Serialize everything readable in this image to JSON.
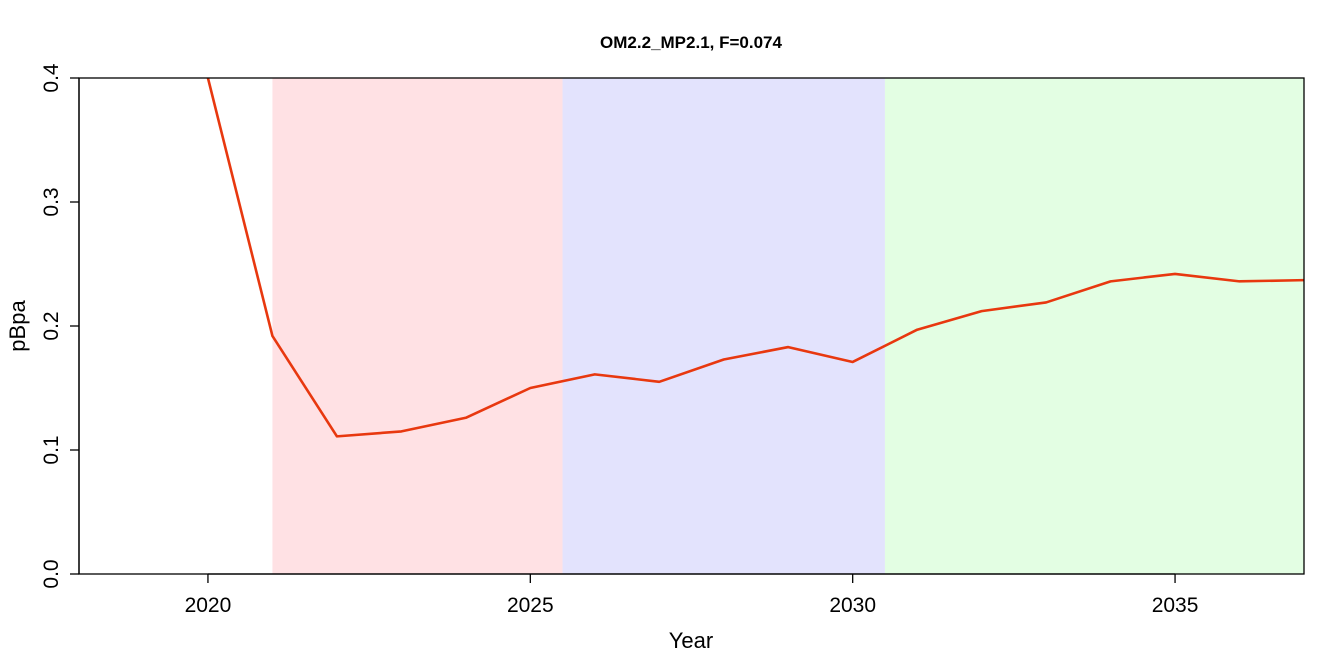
{
  "chart_data": {
    "type": "line",
    "title": "OM2.2_MP2.1, F=0.074",
    "xlabel": "Year",
    "ylabel": "pBpa",
    "xlim": [
      2018,
      2037
    ],
    "ylim": [
      0,
      0.4
    ],
    "x_ticks": [
      {
        "value": 2020,
        "label": "2020"
      },
      {
        "value": 2025,
        "label": "2025"
      },
      {
        "value": 2030,
        "label": "2030"
      },
      {
        "value": 2035,
        "label": "2035"
      }
    ],
    "y_ticks": [
      {
        "value": 0.0,
        "label": "0.0"
      },
      {
        "value": 0.1,
        "label": "0.1"
      },
      {
        "value": 0.2,
        "label": "0.2"
      },
      {
        "value": 0.3,
        "label": "0.3"
      },
      {
        "value": 0.4,
        "label": "0.4"
      }
    ],
    "grid": false,
    "shaded_regions": [
      {
        "x_start": 2021,
        "x_end": 2025.5,
        "color": "#ffe1e4"
      },
      {
        "x_start": 2025.5,
        "x_end": 2030.5,
        "color": "#e3e3fd"
      },
      {
        "x_start": 2030.5,
        "x_end": 2037,
        "color": "#e3fee3"
      }
    ],
    "series": [
      {
        "color": "#e8380f",
        "x": [
          2020,
          2021,
          2022,
          2023,
          2024,
          2025,
          2026,
          2027,
          2028,
          2029,
          2030,
          2031,
          2032,
          2033,
          2034,
          2035,
          2036,
          2037
        ],
        "values": [
          0.4,
          0.192,
          0.111,
          0.115,
          0.126,
          0.15,
          0.161,
          0.155,
          0.173,
          0.183,
          0.171,
          0.197,
          0.212,
          0.219,
          0.236,
          0.242,
          0.236,
          0.237
        ]
      }
    ]
  }
}
